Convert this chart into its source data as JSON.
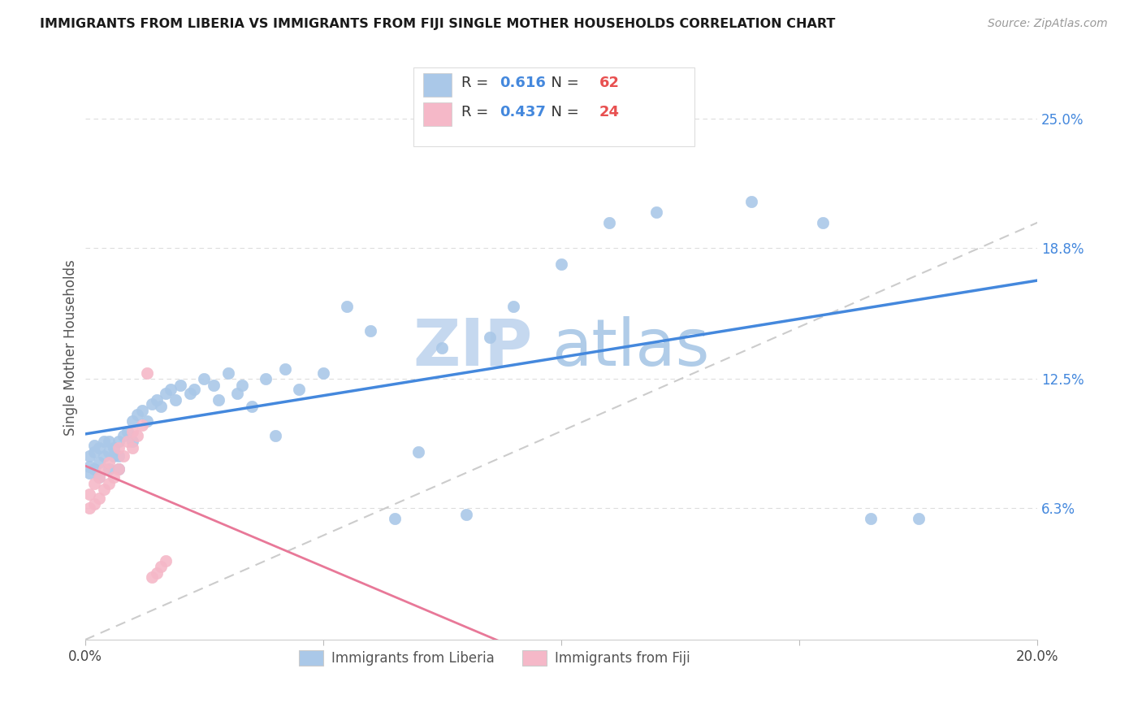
{
  "title": "IMMIGRANTS FROM LIBERIA VS IMMIGRANTS FROM FIJI SINGLE MOTHER HOUSEHOLDS CORRELATION CHART",
  "source": "Source: ZipAtlas.com",
  "ylabel": "Single Mother Households",
  "xlim": [
    0.0,
    0.2
  ],
  "ylim": [
    0.0,
    0.28
  ],
  "xtick_vals": [
    0.0,
    0.05,
    0.1,
    0.15,
    0.2
  ],
  "xtick_labels": [
    "0.0%",
    "",
    "",
    "",
    "20.0%"
  ],
  "ytick_vals_right": [
    0.063,
    0.125,
    0.188,
    0.25
  ],
  "ytick_labels_right": [
    "6.3%",
    "12.5%",
    "18.8%",
    "25.0%"
  ],
  "liberia_color": "#aac8e8",
  "fiji_color": "#f5b8c8",
  "liberia_line_color": "#4488dd",
  "fiji_line_color": "#e87898",
  "diagonal_color": "#cccccc",
  "R_liberia": 0.616,
  "N_liberia": 62,
  "R_fiji": 0.437,
  "N_fiji": 24,
  "liberia_label": "Immigrants from Liberia",
  "fiji_label": "Immigrants from Fiji",
  "liberia_x": [
    0.001,
    0.001,
    0.001,
    0.002,
    0.002,
    0.002,
    0.003,
    0.003,
    0.003,
    0.004,
    0.004,
    0.005,
    0.005,
    0.005,
    0.006,
    0.006,
    0.007,
    0.007,
    0.007,
    0.008,
    0.009,
    0.01,
    0.01,
    0.011,
    0.012,
    0.013,
    0.014,
    0.015,
    0.016,
    0.017,
    0.018,
    0.019,
    0.02,
    0.022,
    0.023,
    0.025,
    0.027,
    0.028,
    0.03,
    0.032,
    0.033,
    0.035,
    0.038,
    0.04,
    0.042,
    0.045,
    0.05,
    0.055,
    0.06,
    0.065,
    0.07,
    0.075,
    0.08,
    0.085,
    0.09,
    0.1,
    0.11,
    0.12,
    0.14,
    0.155,
    0.165,
    0.175
  ],
  "liberia_y": [
    0.08,
    0.083,
    0.088,
    0.082,
    0.09,
    0.093,
    0.078,
    0.085,
    0.092,
    0.088,
    0.095,
    0.082,
    0.09,
    0.095,
    0.088,
    0.092,
    0.082,
    0.088,
    0.095,
    0.098,
    0.1,
    0.095,
    0.105,
    0.108,
    0.11,
    0.105,
    0.113,
    0.115,
    0.112,
    0.118,
    0.12,
    0.115,
    0.122,
    0.118,
    0.12,
    0.125,
    0.122,
    0.115,
    0.128,
    0.118,
    0.122,
    0.112,
    0.125,
    0.098,
    0.13,
    0.12,
    0.128,
    0.16,
    0.148,
    0.058,
    0.09,
    0.14,
    0.06,
    0.145,
    0.16,
    0.18,
    0.2,
    0.205,
    0.21,
    0.2,
    0.058,
    0.058
  ],
  "fiji_x": [
    0.001,
    0.001,
    0.002,
    0.002,
    0.003,
    0.003,
    0.004,
    0.004,
    0.005,
    0.005,
    0.006,
    0.007,
    0.007,
    0.008,
    0.009,
    0.01,
    0.01,
    0.011,
    0.012,
    0.013,
    0.014,
    0.015,
    0.016,
    0.017
  ],
  "fiji_y": [
    0.063,
    0.07,
    0.065,
    0.075,
    0.068,
    0.078,
    0.072,
    0.082,
    0.075,
    0.085,
    0.078,
    0.082,
    0.092,
    0.088,
    0.095,
    0.092,
    0.1,
    0.098,
    0.103,
    0.128,
    0.03,
    0.032,
    0.035,
    0.038
  ]
}
